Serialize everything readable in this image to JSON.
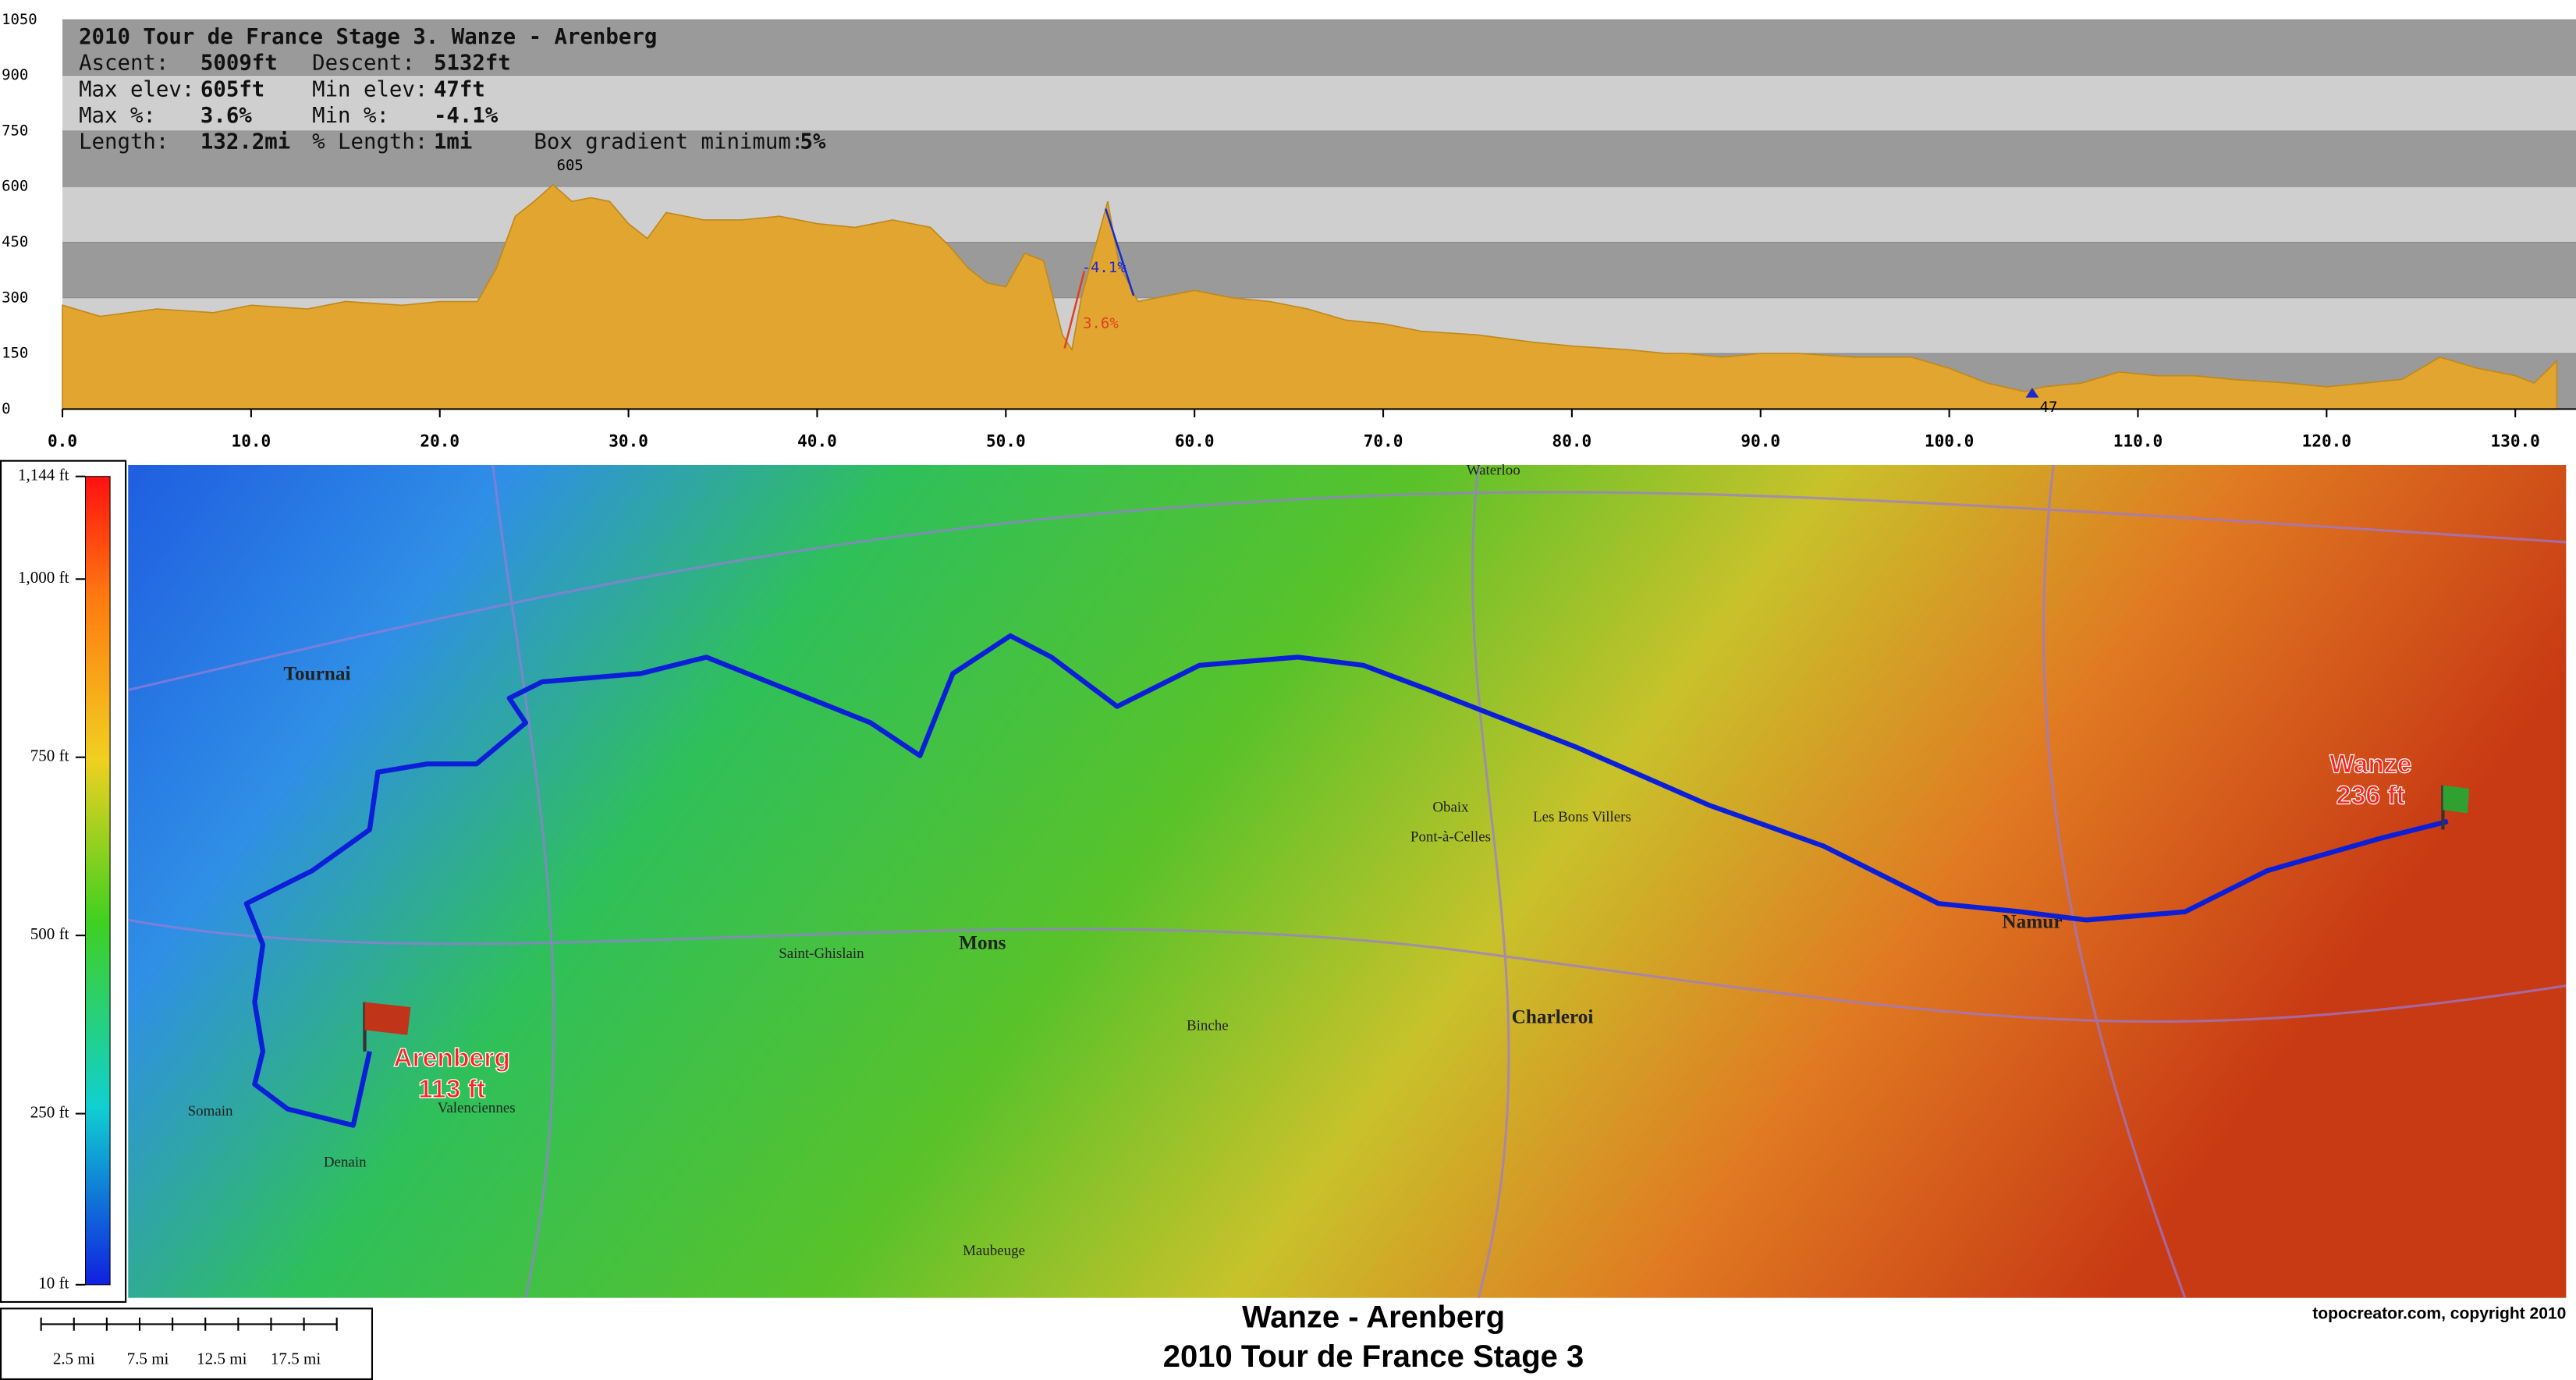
{
  "chart_data": {
    "type": "area",
    "x": [
      0,
      2,
      5,
      8,
      10,
      13,
      15,
      18,
      20,
      22,
      23,
      24,
      25,
      26,
      27,
      28,
      29,
      30,
      31,
      32,
      34,
      36,
      38,
      40,
      42,
      44,
      46,
      47,
      48,
      49,
      50,
      51,
      52,
      53,
      53.5,
      54,
      55.4,
      56,
      57,
      58,
      60,
      62,
      64,
      66,
      68,
      70,
      72,
      75,
      78,
      80,
      83,
      85,
      86,
      88,
      90,
      92,
      95,
      98,
      100,
      102,
      104,
      105,
      107,
      109,
      111,
      113,
      115,
      118,
      120,
      122,
      124,
      126,
      128,
      130,
      131,
      132.2
    ],
    "series": [
      {
        "name": "Elevation",
        "color": "#e2a530",
        "values": [
          280,
          250,
          270,
          260,
          280,
          270,
          290,
          280,
          290,
          290,
          380,
          520,
          560,
          605,
          560,
          570,
          560,
          500,
          460,
          530,
          510,
          510,
          520,
          500,
          490,
          510,
          490,
          440,
          380,
          340,
          330,
          420,
          400,
          200,
          160,
          300,
          560,
          390,
          290,
          300,
          320,
          300,
          290,
          270,
          240,
          230,
          210,
          200,
          180,
          170,
          160,
          150,
          150,
          140,
          150,
          150,
          140,
          140,
          110,
          70,
          47,
          60,
          70,
          100,
          90,
          90,
          80,
          70,
          60,
          70,
          80,
          140,
          110,
          90,
          70,
          130
        ]
      }
    ],
    "xlim": [
      0,
      132.2
    ],
    "ylim": [
      0,
      1050
    ],
    "xticks": [
      {
        "value": 0,
        "label": "0.0"
      },
      {
        "value": 10,
        "label": "10.0"
      },
      {
        "value": 20,
        "label": "20.0"
      },
      {
        "value": 30,
        "label": "30.0"
      },
      {
        "value": 40,
        "label": "40.0"
      },
      {
        "value": 50,
        "label": "50.0"
      },
      {
        "value": 60,
        "label": "60.0"
      },
      {
        "value": 70,
        "label": "70.0"
      },
      {
        "value": 80,
        "label": "80.0"
      },
      {
        "value": 90,
        "label": "90.0"
      },
      {
        "value": 100,
        "label": "100.0"
      },
      {
        "value": 110,
        "label": "110.0"
      },
      {
        "value": 120,
        "label": "120.0"
      },
      {
        "value": 130,
        "label": "130.0"
      }
    ],
    "yticks": [
      0,
      150,
      300,
      450,
      600,
      750,
      900,
      1050
    ],
    "annotations": [
      "605",
      "47",
      "-4.1%",
      "3.6%"
    ]
  },
  "info": {
    "title": "2010 Tour de France Stage 3. Wanze - Arenberg",
    "rows": [
      [
        "Ascent:",
        "5009ft",
        "Descent:",
        "5132ft"
      ],
      [
        "Max elev:",
        "605ft",
        "Min elev:",
        "47ft"
      ],
      [
        "Max %:",
        "3.6%",
        "Min %:",
        "-4.1%"
      ],
      [
        "Length:",
        "132.2mi",
        "% Length:",
        "1mi",
        "Box gradient minimum:",
        "5%"
      ]
    ]
  },
  "elevation_legend": {
    "lim": [
      10,
      1144
    ],
    "ticks": [
      {
        "value": 1144,
        "label": "1,144 ft"
      },
      {
        "value": 1000,
        "label": "1,000 ft"
      },
      {
        "value": 750,
        "label": "750 ft"
      },
      {
        "value": 500,
        "label": "500 ft"
      },
      {
        "value": 250,
        "label": "250 ft"
      },
      {
        "value": 10,
        "label": "10 ft"
      }
    ]
  },
  "map": {
    "start": {
      "name": "Wanze",
      "elevation": "236 ft"
    },
    "finish": {
      "name": "Arenberg",
      "elevation": "113 ft"
    },
    "places": [
      "Tournai",
      "Mons",
      "Charleroi",
      "Namur",
      "Valenciennes",
      "Denain",
      "Maubeuge",
      "Binche",
      "Waterloo",
      "Saint-Ghislain",
      "Somain",
      "Obaix",
      "Les Bons Villers",
      "Pont-à-Celles"
    ]
  },
  "scale_bar": [
    "2.5 mi",
    "7.5 mi",
    "12.5 mi",
    "17.5 mi"
  ],
  "footer": {
    "title": "Wanze - Arenberg",
    "subtitle": "2010 Tour de France Stage 3",
    "copyright": "topocreator.com, copyright 2010"
  }
}
